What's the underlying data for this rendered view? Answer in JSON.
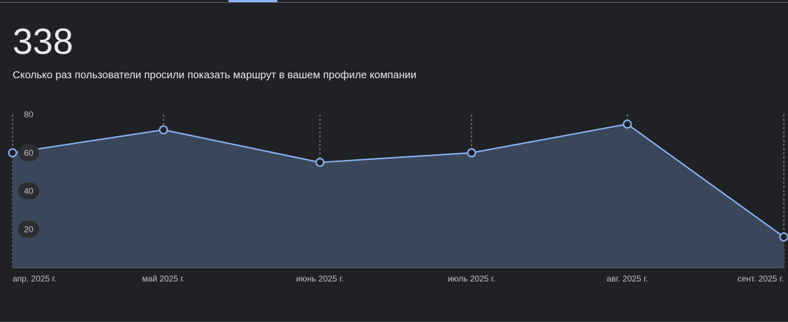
{
  "metric": {
    "value": "338",
    "description": "Сколько раз пользователи просили показать маршрут в вашем профиле компании"
  },
  "colors": {
    "background": "#202124",
    "line": "#8ab4f8",
    "area": "#3a475a",
    "text": "#e8eaed",
    "muted": "#bdc1c6"
  },
  "chart_data": {
    "type": "area",
    "categories": [
      "апр. 2025 г.",
      "май 2025 г.",
      "июнь 2025 г.",
      "июль 2025 г.",
      "авг. 2025 г.",
      "сент. 2025 г."
    ],
    "values": [
      60,
      72,
      55,
      60,
      75,
      16
    ],
    "y_ticks": [
      20,
      40,
      60,
      80
    ],
    "ylim": [
      0,
      80
    ],
    "grid": "vertical dashed",
    "legend": "none"
  }
}
